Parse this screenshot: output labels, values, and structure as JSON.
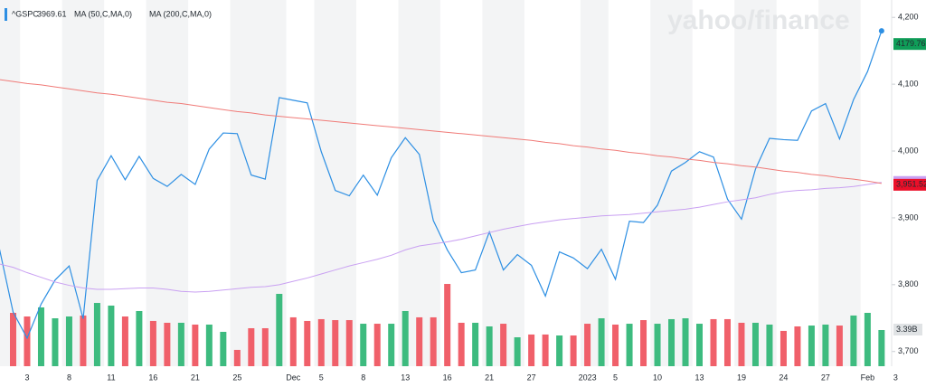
{
  "chart_data": {
    "type": "line",
    "quote": 3969.61,
    "watermark": "yahoo/finance",
    "categories": [
      null,
      null,
      "3",
      null,
      null,
      "8",
      null,
      null,
      "11",
      null,
      null,
      "16",
      null,
      null,
      "21",
      null,
      null,
      "25",
      null,
      null,
      null,
      "Dec",
      null,
      "5",
      null,
      null,
      "8",
      null,
      null,
      "13",
      null,
      null,
      "16",
      null,
      null,
      "21",
      null,
      null,
      "27",
      null,
      null,
      null,
      "2023",
      null,
      "5",
      null,
      null,
      "10",
      null,
      null,
      "13",
      null,
      null,
      "19",
      null,
      null,
      "24",
      null,
      null,
      "27",
      null,
      null,
      "Feb",
      null,
      "3"
    ],
    "series": [
      {
        "name": "^GSPC",
        "color": "#2d8fe3",
        "values": [
          3856,
          3759,
          3720,
          3771,
          3807,
          3828,
          3749,
          3956,
          3993,
          3957,
          3992,
          3959,
          3947,
          3965,
          3950,
          4003,
          4027,
          4026,
          3964,
          3958,
          4080,
          4076,
          4072,
          3999,
          3941,
          3933,
          3964,
          3934,
          3990,
          4020,
          3995,
          3896,
          3852,
          3818,
          3822,
          3879,
          3822,
          3845,
          3829,
          3783,
          3849,
          3840,
          3824,
          3853,
          3808,
          3895,
          3893,
          3919,
          3970,
          3983,
          3999,
          3991,
          3928,
          3898,
          3973,
          4019,
          4017,
          4016,
          4060,
          4071,
          4018,
          4077,
          4119,
          4179.76,
          null
        ],
        "tag_color": "#0f9d58"
      },
      {
        "name": "MA (50,C,MA,0)",
        "color": "#c9a0f2",
        "values": [
          3831,
          3826,
          3818,
          3811,
          3804,
          3799,
          3795,
          3793,
          3793,
          3794,
          3795,
          3795,
          3793,
          3790,
          3789,
          3790,
          3792,
          3794,
          3796,
          3797,
          3800,
          3805,
          3810,
          3816,
          3822,
          3828,
          3833,
          3838,
          3844,
          3852,
          3858,
          3861,
          3864,
          3868,
          3873,
          3878,
          3883,
          3887,
          3891,
          3894,
          3897,
          3899,
          3901,
          3903,
          3904,
          3905,
          3907,
          3909,
          3911,
          3913,
          3916,
          3920,
          3924,
          3927,
          3930,
          3935,
          3939,
          3941,
          3942,
          3944,
          3945,
          3947,
          3950,
          3953,
          null
        ]
      },
      {
        "name": "MA (200,C,MA,0)",
        "color": "#f07b78",
        "values": [
          4107,
          4104,
          4101,
          4099,
          4096,
          4093,
          4090,
          4087,
          4085,
          4082,
          4079,
          4076,
          4073,
          4071,
          4068,
          4065,
          4062,
          4059,
          4057,
          4054,
          4052,
          4050,
          4048,
          4046,
          4044,
          4042,
          4040,
          4038,
          4036,
          4034,
          4032,
          4030,
          4028,
          4026,
          4024,
          4022,
          4020,
          4018,
          4016,
          4013,
          4011,
          4008,
          4006,
          4003,
          4001,
          3998,
          3996,
          3993,
          3991,
          3988,
          3986,
          3983,
          3981,
          3978,
          3976,
          3973,
          3970,
          3968,
          3965,
          3963,
          3960,
          3958,
          3955,
          3951.52,
          null
        ],
        "value_labels": [
          null,
          null,
          null,
          null,
          null,
          null,
          null,
          null,
          null,
          null,
          null,
          null,
          null,
          null,
          null,
          null,
          null,
          null,
          null,
          null,
          null,
          null,
          null,
          null,
          null,
          null,
          null,
          null,
          null,
          null,
          null,
          null,
          null,
          null,
          null,
          null,
          null,
          null,
          null,
          null,
          null,
          null,
          null,
          null,
          null,
          null,
          null,
          null,
          null,
          null,
          null,
          null,
          null,
          null,
          null,
          null,
          null,
          null,
          null,
          null,
          null,
          null,
          null,
          "3,951.52",
          null
        ],
        "tag_color": "#eb0f29"
      },
      {
        "name": "Volume",
        "type": "bar",
        "axis": "y2",
        "up_color": "#3dbb7f",
        "down_color": "#f0606a",
        "values": [
          null,
          5.0,
          4.66,
          5.51,
          4.49,
          4.66,
          4.75,
          5.93,
          5.68,
          4.66,
          5.17,
          4.24,
          4.07,
          4.07,
          3.9,
          3.9,
          3.22,
          1.53,
          3.56,
          3.56,
          6.78,
          4.58,
          4.24,
          4.41,
          4.32,
          4.32,
          3.98,
          3.98,
          3.98,
          5.17,
          4.58,
          4.58,
          7.71,
          4.07,
          4.07,
          3.73,
          3.98,
          2.71,
          2.97,
          2.97,
          2.88,
          2.88,
          3.98,
          4.49,
          3.9,
          3.98,
          4.32,
          3.98,
          4.41,
          4.49,
          3.98,
          4.41,
          4.41,
          4.07,
          4.07,
          3.9,
          3.31,
          3.73,
          3.81,
          3.9,
          3.81,
          4.75,
          5.0,
          3.39,
          null
        ],
        "value_labels": [
          null,
          null,
          null,
          null,
          null,
          null,
          null,
          null,
          null,
          null,
          null,
          null,
          null,
          null,
          null,
          null,
          null,
          null,
          null,
          null,
          null,
          null,
          null,
          null,
          null,
          null,
          null,
          null,
          null,
          null,
          null,
          null,
          null,
          null,
          null,
          null,
          null,
          null,
          null,
          null,
          null,
          null,
          null,
          null,
          null,
          null,
          null,
          null,
          null,
          null,
          null,
          null,
          null,
          null,
          null,
          null,
          null,
          null,
          null,
          null,
          null,
          null,
          null,
          "3.39B",
          null
        ]
      }
    ],
    "ylim": [
      3678,
      4226
    ],
    "yticks": [
      {
        "value": 4200,
        "label": "4,200"
      },
      {
        "value": 4100,
        "label": "4,100"
      },
      {
        "value": 4000,
        "label": "4,000"
      },
      {
        "value": 3900,
        "label": "3,900"
      },
      {
        "value": 3800,
        "label": "3,800"
      },
      {
        "value": 3700,
        "label": "3,700"
      }
    ],
    "y2lim": [
      0,
      34.32
    ]
  }
}
